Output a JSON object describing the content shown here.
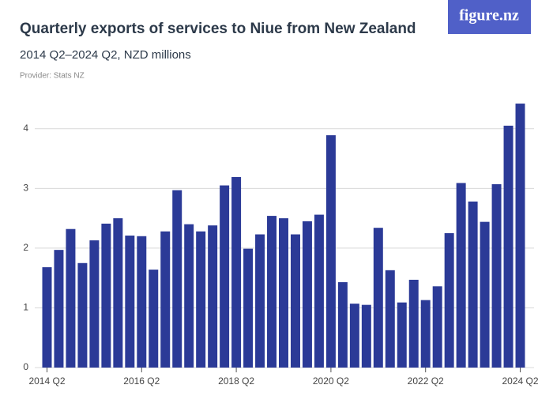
{
  "chart_data": {
    "type": "bar",
    "title": "Quarterly exports of services to Niue from New Zealand",
    "subtitle": "2014 Q2–2024 Q2, NZD millions",
    "provider": "Provider: Stats NZ",
    "logo": "figure.nz",
    "color": "#2b3a97",
    "grid": true,
    "ylim": [
      0,
      4.5
    ],
    "yticks": [
      0,
      1,
      2,
      3,
      4
    ],
    "categories": [
      "2014 Q2",
      null,
      null,
      null,
      null,
      null,
      null,
      null,
      "2016 Q2",
      null,
      null,
      null,
      null,
      null,
      null,
      null,
      "2018 Q2",
      null,
      null,
      null,
      null,
      null,
      null,
      null,
      "2020 Q2",
      null,
      null,
      null,
      null,
      null,
      null,
      null,
      "2022 Q2",
      null,
      null,
      null,
      null,
      null,
      null,
      null,
      "2024 Q2"
    ],
    "values": [
      1.68,
      1.97,
      2.32,
      1.75,
      2.13,
      2.41,
      2.5,
      2.21,
      2.2,
      1.64,
      2.28,
      2.97,
      2.4,
      2.28,
      2.38,
      3.05,
      3.19,
      1.99,
      2.23,
      2.54,
      2.5,
      2.23,
      2.45,
      2.56,
      3.89,
      1.43,
      1.07,
      1.05,
      2.34,
      1.63,
      1.09,
      1.47,
      1.13,
      1.36,
      2.25,
      3.09,
      2.78,
      2.44,
      3.07,
      4.05,
      4.42
    ]
  }
}
